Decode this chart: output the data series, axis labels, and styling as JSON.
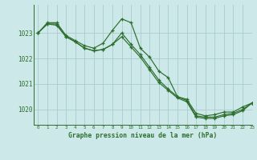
{
  "bg_color": "#cce8e8",
  "grid_color": "#aacccc",
  "line_color": "#2d6e2d",
  "text_color": "#2d6e2d",
  "xlabel": "Graphe pression niveau de la mer (hPa)",
  "xlim": [
    -0.5,
    23
  ],
  "ylim": [
    1019.4,
    1024.1
  ],
  "yticks": [
    1020,
    1021,
    1022,
    1023
  ],
  "xticks": [
    0,
    1,
    2,
    3,
    4,
    5,
    6,
    7,
    8,
    9,
    10,
    11,
    12,
    13,
    14,
    15,
    16,
    17,
    18,
    19,
    20,
    21,
    22,
    23
  ],
  "s1": [
    1023.0,
    1023.4,
    1023.4,
    1022.9,
    1022.7,
    1022.5,
    1022.4,
    1022.6,
    1023.1,
    1023.55,
    1023.4,
    1022.4,
    1022.05,
    1021.5,
    1021.25,
    1020.5,
    1020.4,
    1019.85,
    1019.75,
    1019.8,
    1019.9,
    1019.9,
    1020.1,
    1020.25
  ],
  "s2": [
    1023.0,
    1023.35,
    1023.35,
    1022.85,
    1022.65,
    1022.4,
    1022.3,
    1022.35,
    1022.55,
    1023.0,
    1022.55,
    1022.15,
    1021.65,
    1021.15,
    1020.8,
    1020.5,
    1020.35,
    1019.75,
    1019.7,
    1019.7,
    1019.8,
    1019.85,
    1020.0,
    1020.25
  ],
  "s3": [
    1023.0,
    1023.35,
    1023.3,
    1022.85,
    1022.65,
    1022.4,
    1022.3,
    1022.35,
    1022.55,
    1022.85,
    1022.45,
    1022.05,
    1021.55,
    1021.05,
    1020.75,
    1020.45,
    1020.3,
    1019.7,
    1019.65,
    1019.65,
    1019.75,
    1019.8,
    1019.95,
    1020.25
  ]
}
